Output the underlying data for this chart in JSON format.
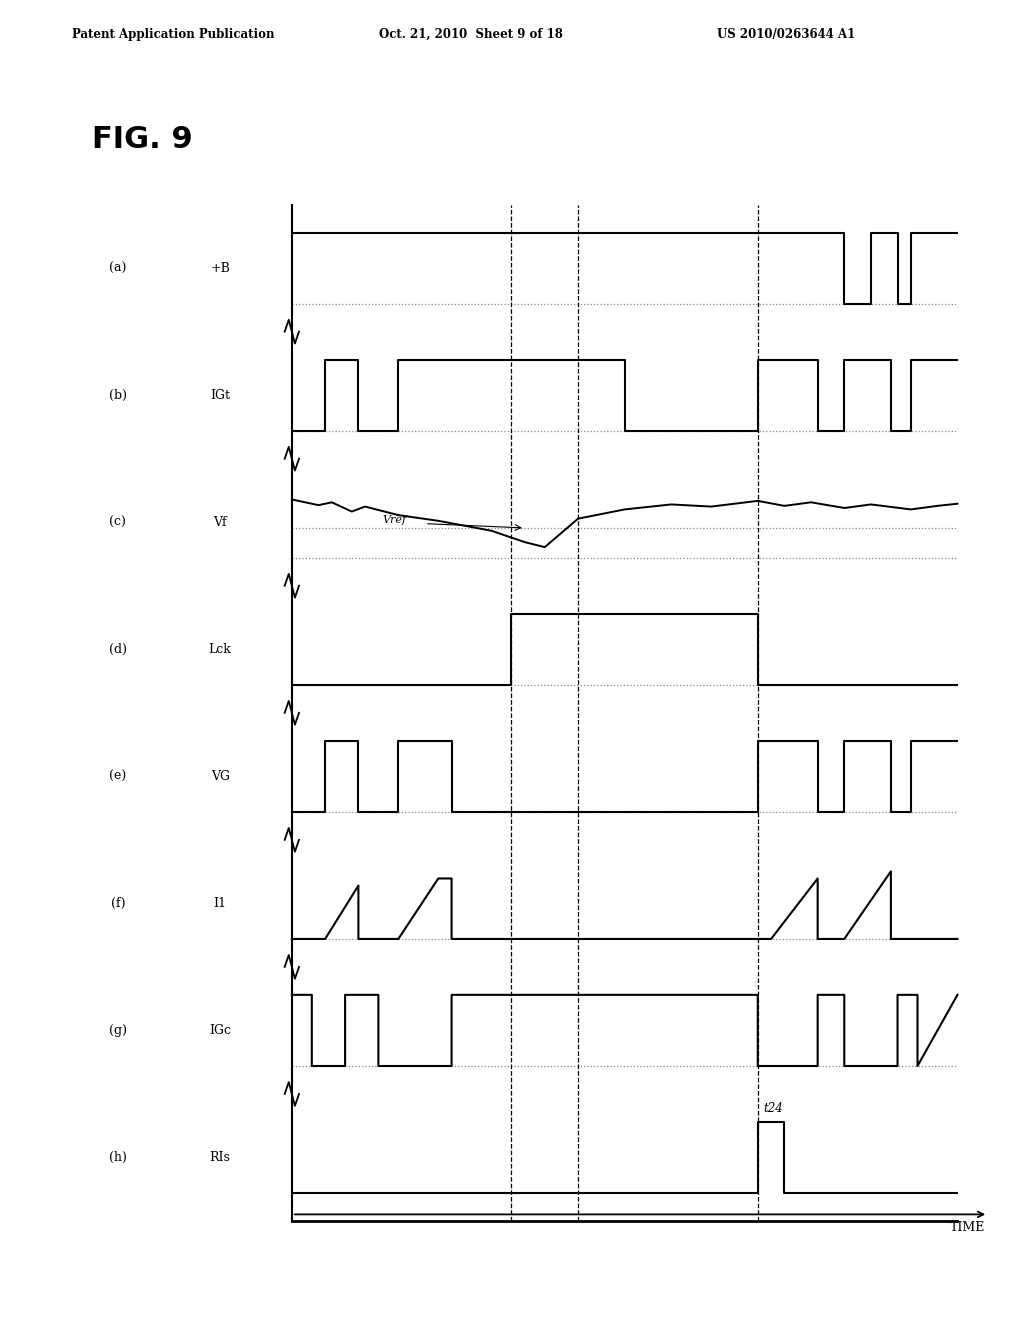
{
  "title": "FIG. 9",
  "header_left": "Patent Application Publication",
  "header_center": "Oct. 21, 2010  Sheet 9 of 18",
  "header_right": "US 2010/0263644 A1",
  "time_label": "TIME",
  "channels": [
    {
      "label": "(a)",
      "signal": "+B"
    },
    {
      "label": "(b)",
      "signal": "IGt"
    },
    {
      "label": "(c)",
      "signal": "Vf"
    },
    {
      "label": "(d)",
      "signal": "Lck"
    },
    {
      "label": "(e)",
      "signal": "VG"
    },
    {
      "label": "(f)",
      "signal": "I1"
    },
    {
      "label": "(g)",
      "signal": "IGc"
    },
    {
      "label": "(h)",
      "signal": "RIs"
    }
  ],
  "vref_label": "Vref",
  "t24_label": "t24",
  "dv1": 33.0,
  "dv2": 43.0,
  "dv3": 70.0,
  "T": 100.0,
  "background_color": "#ffffff",
  "line_color": "#000000",
  "dot_color": "#888888"
}
